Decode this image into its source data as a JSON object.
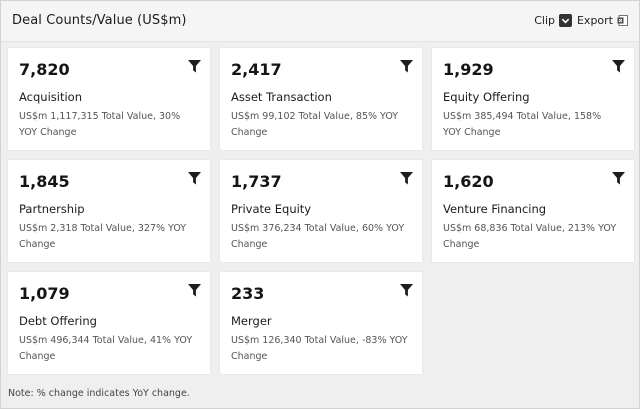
{
  "panel": {
    "title": "Deal Counts/Value (US$m)",
    "clip_label": "Clip",
    "export_label": "Export"
  },
  "cards": [
    {
      "count": "7,820",
      "name": "Acquisition",
      "detail": "US$m 1,117,315 Total Value, 30% YOY Change"
    },
    {
      "count": "2,417",
      "name": "Asset Transaction",
      "detail": "US$m 99,102 Total Value, 85% YOY Change"
    },
    {
      "count": "1,929",
      "name": "Equity Offering",
      "detail": "US$m 385,494 Total Value, 158% YOY Change"
    },
    {
      "count": "1,845",
      "name": "Partnership",
      "detail": "US$m 2,318 Total Value, 327% YOY Change"
    },
    {
      "count": "1,737",
      "name": "Private Equity",
      "detail": "US$m 376,234 Total Value, 60% YOY Change"
    },
    {
      "count": "1,620",
      "name": "Venture Financing",
      "detail": "US$m 68,836 Total Value, 213% YOY Change"
    },
    {
      "count": "1,079",
      "name": "Debt Offering",
      "detail": "US$m 496,344 Total Value, 41% YOY Change"
    },
    {
      "count": "233",
      "name": "Merger",
      "detail": "US$m 126,340 Total Value, -83% YOY Change"
    }
  ],
  "footer": {
    "note": "Note: % change indicates YoY change."
  },
  "icons": {
    "filter": "filter-icon",
    "clip": "checkmark-icon",
    "export": "excel-icon"
  }
}
